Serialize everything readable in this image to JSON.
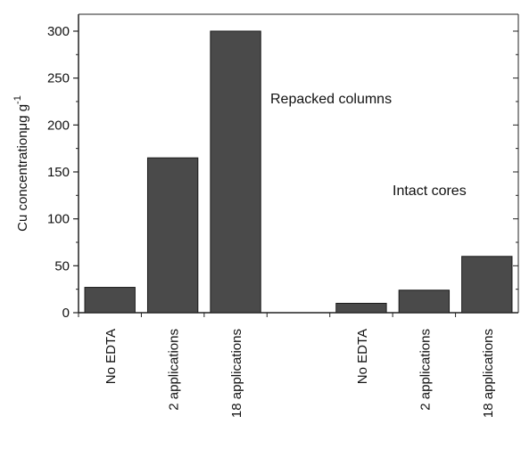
{
  "chart_data": {
    "type": "bar",
    "categories": [
      "No EDTA",
      "2 applications",
      "18 applications",
      "",
      "No EDTA",
      "2 applications",
      "18 applications"
    ],
    "values": [
      27,
      165,
      300,
      null,
      10,
      24,
      60
    ],
    "ylabel": "Cu concentration",
    "ylabel_unit_prefix": "μg g",
    "ylabel_unit_exp": "-1",
    "yticks": [
      0,
      50,
      100,
      150,
      200,
      250,
      300
    ],
    "ylim": [
      0,
      318
    ],
    "annotations": [
      {
        "text": "Repacked columns",
        "group": "left"
      },
      {
        "text": "Intact cores",
        "group": "right"
      }
    ],
    "bar_color": "#4a4a4a",
    "grid": false
  }
}
